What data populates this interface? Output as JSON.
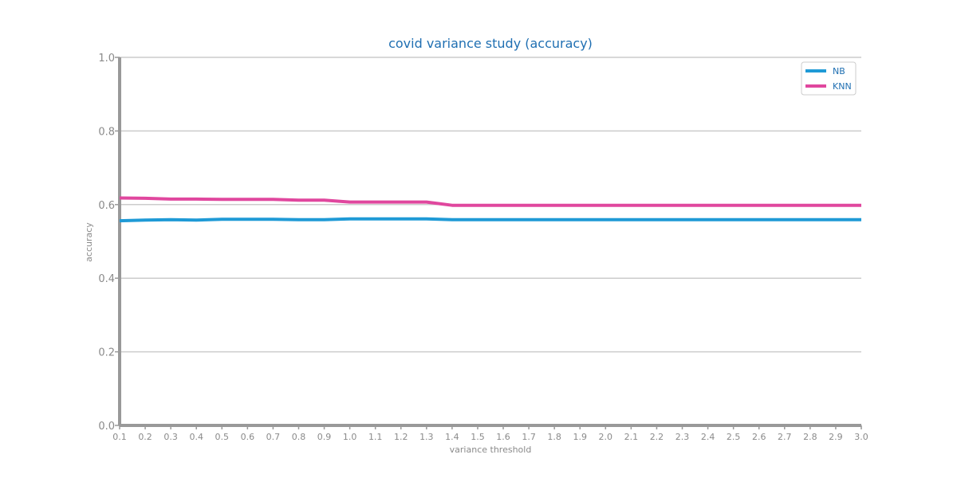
{
  "chart_data": {
    "type": "line",
    "title": "covid variance study (accuracy)",
    "xlabel": "variance threshold",
    "ylabel": "accuracy",
    "x": [
      0.1,
      0.2,
      0.3,
      0.4,
      0.5,
      0.6,
      0.7,
      0.8,
      0.9,
      1.0,
      1.1,
      1.2,
      1.3,
      1.4,
      1.5,
      1.6,
      1.7,
      1.8,
      1.9,
      2.0,
      2.1,
      2.2,
      2.3,
      2.4,
      2.5,
      2.6,
      2.7,
      2.8,
      2.9,
      3.0
    ],
    "x_tick_labels": [
      "0.1",
      "0.2",
      "0.3",
      "0.4",
      "0.5",
      "0.6",
      "0.7",
      "0.8",
      "0.9",
      "1.0",
      "1.1",
      "1.2",
      "1.3",
      "1.4",
      "1.5",
      "1.6",
      "1.7",
      "1.8",
      "1.9",
      "2.0",
      "2.1",
      "2.2",
      "2.3",
      "2.4",
      "2.5",
      "2.6",
      "2.7",
      "2.8",
      "2.9",
      "3.0"
    ],
    "xlim": [
      0.1,
      3.0
    ],
    "ylim": [
      0.0,
      1.0
    ],
    "y_ticks": [
      0.0,
      0.2,
      0.4,
      0.6,
      0.8,
      1.0
    ],
    "y_tick_labels": [
      "0.0",
      "0.2",
      "0.4",
      "0.6",
      "0.8",
      "1.0"
    ],
    "grid": "horizontal",
    "legend_position": "top-right",
    "series": [
      {
        "name": "NB",
        "color": "#1f9ad6",
        "values": [
          0.556,
          0.558,
          0.559,
          0.558,
          0.56,
          0.56,
          0.56,
          0.559,
          0.559,
          0.561,
          0.561,
          0.561,
          0.561,
          0.559,
          0.559,
          0.559,
          0.559,
          0.559,
          0.559,
          0.559,
          0.559,
          0.559,
          0.559,
          0.559,
          0.559,
          0.559,
          0.559,
          0.559,
          0.559,
          0.559
        ]
      },
      {
        "name": "KNN",
        "color": "#e0479e",
        "values": [
          0.618,
          0.617,
          0.615,
          0.615,
          0.614,
          0.614,
          0.614,
          0.612,
          0.612,
          0.607,
          0.607,
          0.607,
          0.607,
          0.598,
          0.598,
          0.598,
          0.598,
          0.598,
          0.598,
          0.598,
          0.598,
          0.598,
          0.598,
          0.598,
          0.598,
          0.598,
          0.598,
          0.598,
          0.598,
          0.598
        ]
      }
    ]
  }
}
